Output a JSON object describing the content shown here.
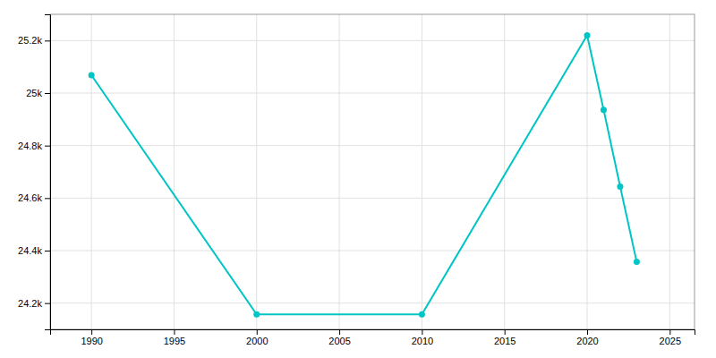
{
  "chart_data": {
    "type": "line",
    "x": [
      1990,
      2000,
      2010,
      2020,
      2021,
      2022,
      2023
    ],
    "values": [
      25068,
      24157,
      24157,
      25220,
      24936,
      24644,
      24357
    ],
    "color": "#00C5C5",
    "marker": "circle",
    "xlim": [
      1987.5,
      2026.5
    ],
    "xticks": [
      1990,
      1995,
      2000,
      2005,
      2010,
      2015,
      2020,
      2025
    ],
    "ylim": [
      24100,
      25300
    ],
    "yticks": [
      {
        "value": 24200,
        "label": "24.2k"
      },
      {
        "value": 24400,
        "label": "24.4k"
      },
      {
        "value": 24600,
        "label": "24.6k"
      },
      {
        "value": 24800,
        "label": "24.8k"
      },
      {
        "value": 25000,
        "label": "25k"
      },
      {
        "value": 25200,
        "label": "25.2k"
      }
    ],
    "grid": true
  }
}
